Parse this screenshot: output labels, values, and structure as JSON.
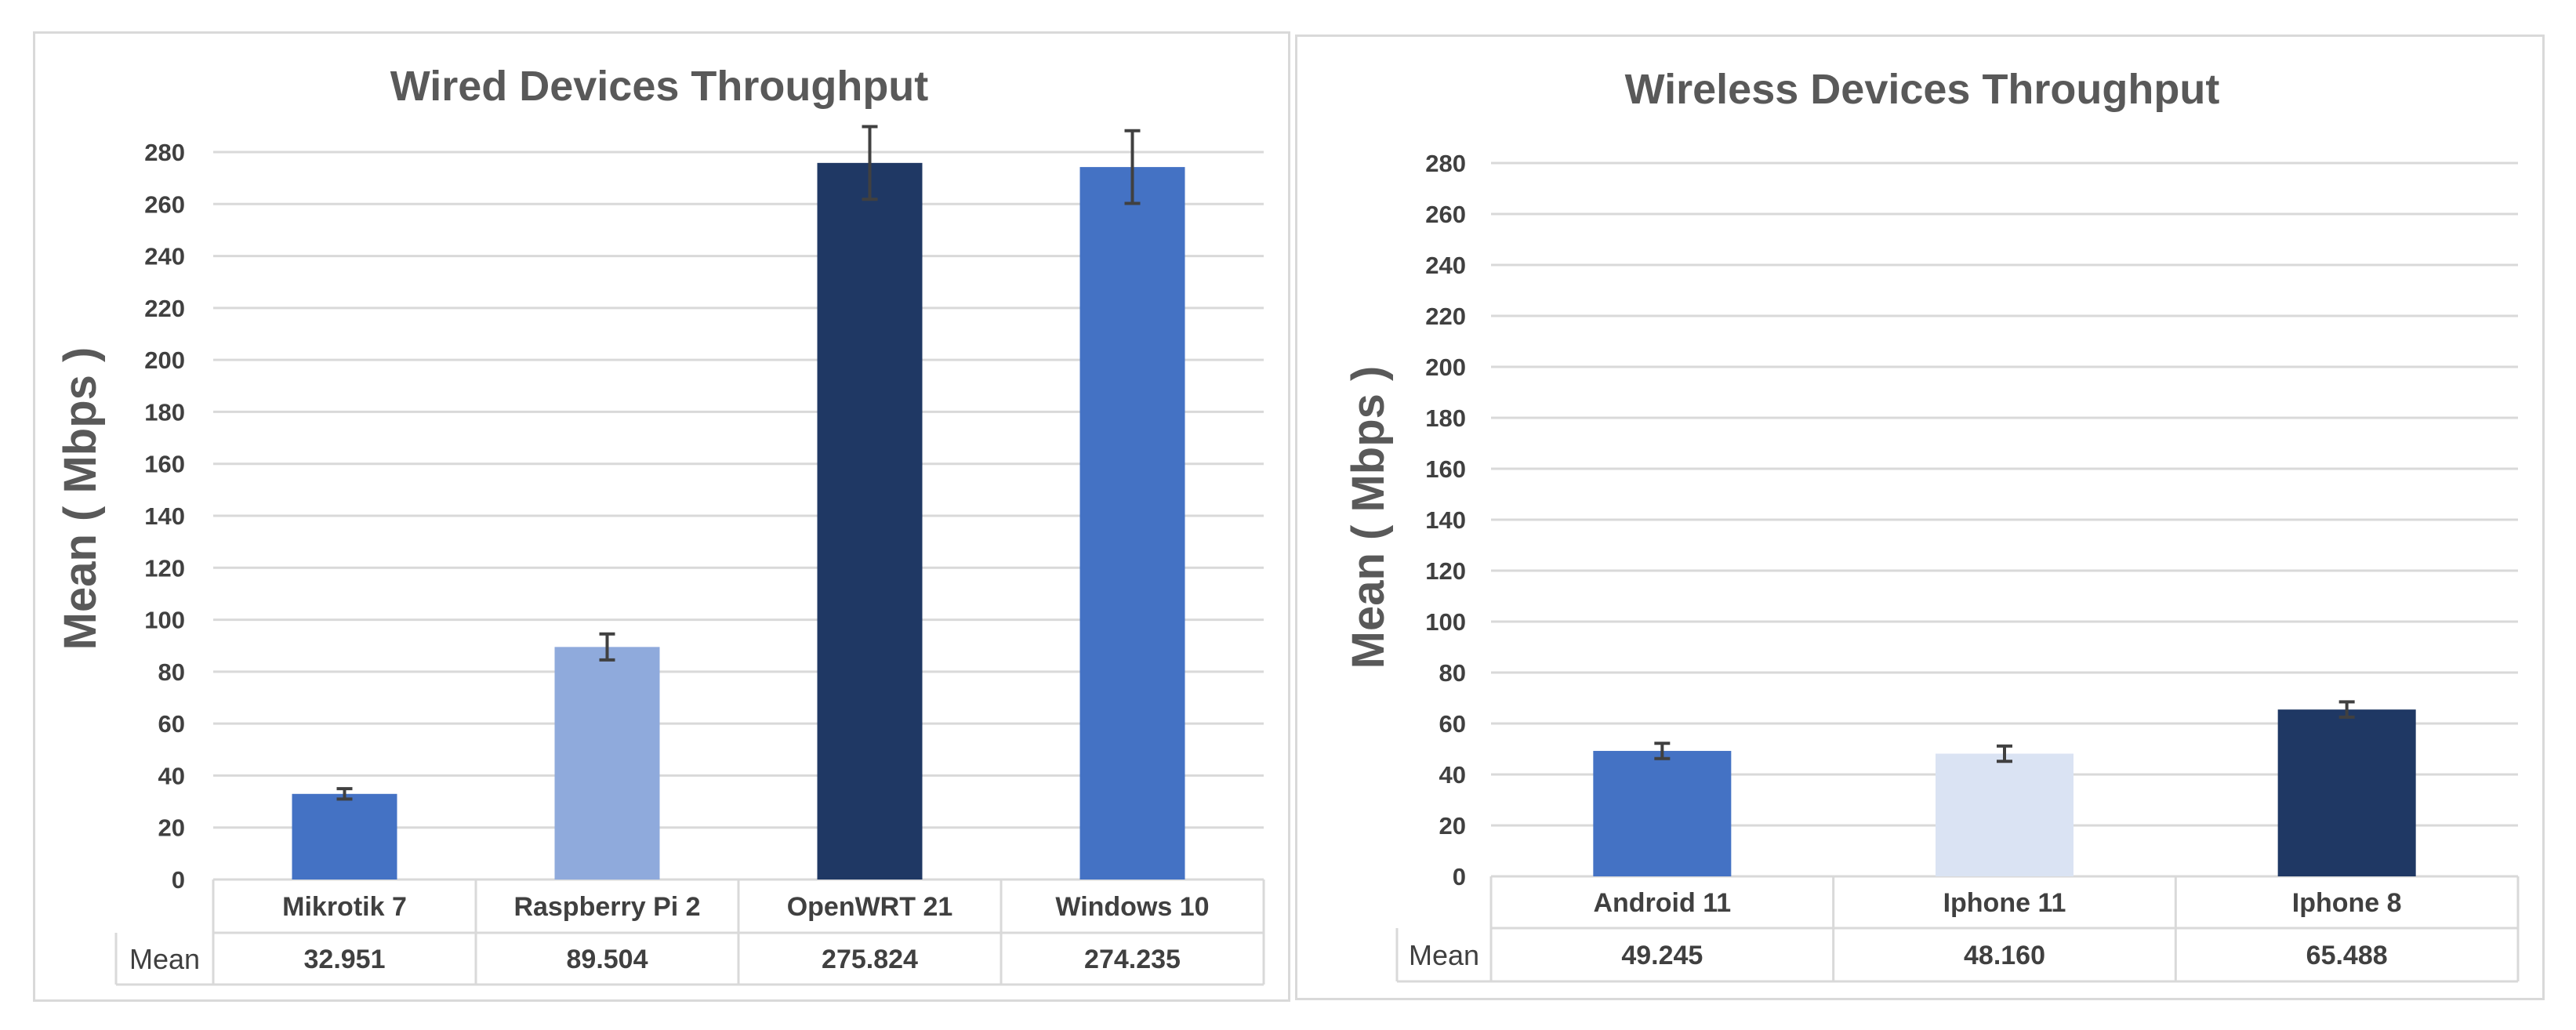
{
  "chart_data": [
    {
      "type": "bar",
      "title": "Wired Devices Throughput",
      "xlabel": "",
      "ylabel": "Mean ( Mbps )",
      "ylim": [
        0,
        280
      ],
      "yticks": [
        0,
        20,
        40,
        60,
        80,
        100,
        120,
        140,
        160,
        180,
        200,
        220,
        240,
        260,
        280
      ],
      "grid": true,
      "categories": [
        "Mikrotik 7",
        "Raspberry Pi 2",
        "OpenWRT 21",
        "Windows 10"
      ],
      "values": [
        32.951,
        89.504,
        275.824,
        274.235
      ],
      "value_labels": [
        "32.951",
        "89.504",
        "275.824",
        "274.235"
      ],
      "error": [
        2,
        5,
        14,
        14
      ],
      "colors": [
        "#4472c4",
        "#8faadc",
        "#1f3864",
        "#4472c4"
      ],
      "table_row_label": "Mean"
    },
    {
      "type": "bar",
      "title": "Wireless Devices Throughput",
      "xlabel": "",
      "ylabel": "Mean ( Mbps )",
      "ylim": [
        0,
        280
      ],
      "yticks": [
        0,
        20,
        40,
        60,
        80,
        100,
        120,
        140,
        160,
        180,
        200,
        220,
        240,
        260,
        280
      ],
      "grid": true,
      "categories": [
        "Android 11",
        "Iphone 11",
        "Iphone 8"
      ],
      "values": [
        49.245,
        48.16,
        65.488
      ],
      "value_labels": [
        "49.245",
        "48.160",
        "65.488"
      ],
      "error": [
        3,
        3,
        3
      ],
      "colors": [
        "#4472c4",
        "#dae3f3",
        "#1f3864"
      ],
      "table_row_label": "Mean"
    }
  ]
}
